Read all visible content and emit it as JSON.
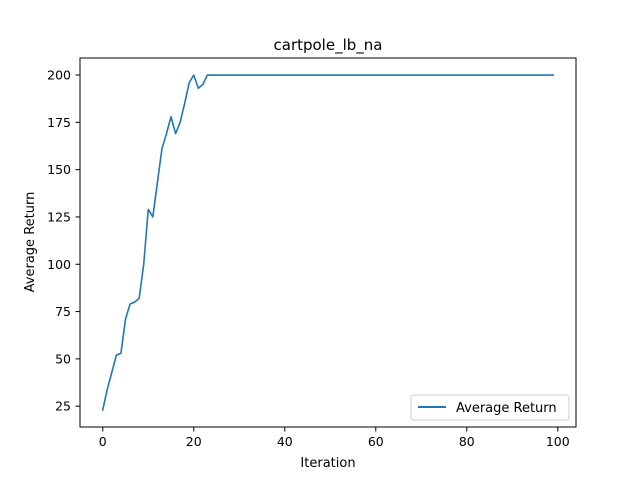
{
  "chart_data": {
    "type": "line",
    "title": "cartpole_lb_na",
    "xlabel": "Iteration",
    "ylabel": "Average Return",
    "xlim": [
      -5,
      104
    ],
    "ylim": [
      14,
      209
    ],
    "xticks": [
      0,
      20,
      40,
      60,
      80,
      100
    ],
    "yticks": [
      25,
      50,
      75,
      100,
      125,
      150,
      175,
      200
    ],
    "grid": false,
    "legend_position": "lower-right",
    "series": [
      {
        "name": "Average Return",
        "color": "#1f77b4",
        "x": [
          0,
          1,
          2,
          3,
          4,
          5,
          6,
          7,
          8,
          9,
          10,
          11,
          12,
          13,
          14,
          15,
          16,
          17,
          18,
          19,
          20,
          21,
          22,
          23,
          24,
          25,
          26,
          27,
          28,
          29,
          30,
          31,
          32,
          33,
          34,
          35,
          36,
          37,
          38,
          39,
          40,
          41,
          42,
          43,
          44,
          45,
          46,
          47,
          48,
          49,
          50,
          51,
          52,
          53,
          54,
          55,
          56,
          57,
          58,
          59,
          60,
          61,
          62,
          63,
          64,
          65,
          66,
          67,
          68,
          69,
          70,
          71,
          72,
          73,
          74,
          75,
          76,
          77,
          78,
          79,
          80,
          81,
          82,
          83,
          84,
          85,
          86,
          87,
          88,
          89,
          90,
          91,
          92,
          93,
          94,
          95,
          96,
          97,
          98,
          99
        ],
        "y": [
          23,
          34,
          43,
          52,
          53,
          71,
          79,
          80,
          82,
          100,
          129,
          125,
          143,
          161,
          169,
          178,
          169,
          175,
          185,
          196,
          200,
          193,
          195,
          200,
          200,
          200,
          200,
          200,
          200,
          200,
          200,
          200,
          200,
          200,
          200,
          200,
          200,
          200,
          200,
          200,
          200,
          200,
          200,
          200,
          200,
          200,
          200,
          200,
          200,
          200,
          200,
          200,
          200,
          200,
          200,
          200,
          200,
          200,
          200,
          200,
          200,
          200,
          200,
          200,
          200,
          200,
          200,
          200,
          200,
          200,
          200,
          200,
          200,
          200,
          200,
          200,
          200,
          200,
          200,
          200,
          200,
          200,
          200,
          200,
          200,
          200,
          200,
          200,
          200,
          200,
          200,
          200,
          200,
          200,
          200,
          200,
          200,
          200,
          200,
          200
        ]
      }
    ]
  }
}
